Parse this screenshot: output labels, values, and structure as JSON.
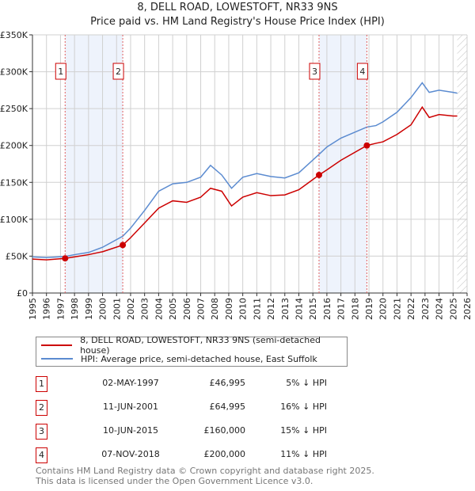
{
  "title_line1": "8, DELL ROAD, LOWESTOFT, NR33 9NS",
  "title_line2": "Price paid vs. HM Land Registry's House Price Index (HPI)",
  "chart_data": {
    "type": "line",
    "title": "8, DELL ROAD, LOWESTOFT, NR33 9NS — Price paid vs. HM Land Registry's House Price Index (HPI)",
    "xlim": [
      1995,
      2026
    ],
    "ylim": [
      0,
      350000
    ],
    "x_ticks": [
      "1995",
      "1996",
      "1997",
      "1998",
      "1999",
      "2000",
      "2001",
      "2002",
      "2003",
      "2004",
      "2005",
      "2006",
      "2007",
      "2008",
      "2009",
      "2010",
      "2011",
      "2012",
      "2013",
      "2014",
      "2015",
      "2016",
      "2017",
      "2018",
      "2019",
      "2020",
      "2021",
      "2022",
      "2023",
      "2024",
      "2025",
      "2026"
    ],
    "y_ticks": [
      {
        "v": 0,
        "label": "£0"
      },
      {
        "v": 50000,
        "label": "£50K"
      },
      {
        "v": 100000,
        "label": "£100K"
      },
      {
        "v": 150000,
        "label": "£150K"
      },
      {
        "v": 200000,
        "label": "£200K"
      },
      {
        "v": 250000,
        "label": "£250K"
      },
      {
        "v": 300000,
        "label": "£300K"
      },
      {
        "v": 350000,
        "label": "£350K"
      }
    ],
    "grid": true,
    "colors": {
      "property": "#cc0000",
      "hpi": "#5b8bd0",
      "shade": "#eef3fc",
      "marker_line": "#e06060"
    },
    "series": [
      {
        "name": "8, DELL ROAD, LOWESTOFT, NR33 9NS (semi-detached house)",
        "key": "property",
        "x": [
          1995,
          1996,
          1997.33,
          1998,
          1999,
          2000,
          2001.44,
          2002,
          2003,
          2004,
          2005,
          2006,
          2007,
          2007.7,
          2008.5,
          2009.2,
          2010,
          2011,
          2012,
          2013,
          2014,
          2015.44,
          2016,
          2017,
          2018.85,
          2019.5,
          2020,
          2021,
          2022,
          2022.8,
          2023.3,
          2024,
          2025,
          2025.3
        ],
        "y": [
          46000,
          45000,
          46995,
          49000,
          52000,
          56000,
          64995,
          75000,
          95000,
          115000,
          125000,
          123000,
          130000,
          142000,
          138000,
          118000,
          130000,
          136000,
          132000,
          133000,
          140000,
          160000,
          167000,
          180000,
          200000,
          203000,
          205000,
          215000,
          228000,
          252000,
          238000,
          242000,
          240000,
          240000
        ]
      },
      {
        "name": "HPI: Average price, semi-detached house, East Suffolk",
        "key": "hpi",
        "x": [
          1995,
          1996,
          1997.33,
          1998,
          1999,
          2000,
          2001.44,
          2002,
          2003,
          2004,
          2005,
          2006,
          2007,
          2007.7,
          2008.5,
          2009.2,
          2010,
          2011,
          2012,
          2013,
          2014,
          2015.44,
          2016,
          2017,
          2018.85,
          2019.5,
          2020,
          2021,
          2022,
          2022.8,
          2023.3,
          2024,
          2025,
          2025.3
        ],
        "y": [
          49000,
          48000,
          49500,
          52000,
          55000,
          62000,
          77000,
          88000,
          112000,
          138000,
          148000,
          150000,
          157000,
          173000,
          160000,
          142000,
          157000,
          162000,
          158000,
          156000,
          163000,
          188000,
          198000,
          210000,
          225000,
          227000,
          232000,
          245000,
          265000,
          285000,
          272000,
          275000,
          272000,
          271000
        ]
      }
    ],
    "sales": [
      {
        "n": "1",
        "x": 1997.33,
        "price": 46995
      },
      {
        "n": "2",
        "x": 2001.44,
        "price": 64995
      },
      {
        "n": "3",
        "x": 2015.44,
        "price": 160000
      },
      {
        "n": "4",
        "x": 2018.85,
        "price": 200000
      }
    ],
    "shaded_ranges": [
      [
        1997.33,
        2001.44
      ],
      [
        2015.44,
        2018.85
      ]
    ],
    "hatched_from": 2025.3
  },
  "legend": {
    "property": "8, DELL ROAD, LOWESTOFT, NR33 9NS (semi-detached house)",
    "hpi": "HPI: Average price, semi-detached house, East Suffolk"
  },
  "transactions": [
    {
      "n": "1",
      "date": "02-MAY-1997",
      "price": "£46,995",
      "hpi": "5% ↓ HPI"
    },
    {
      "n": "2",
      "date": "11-JUN-2001",
      "price": "£64,995",
      "hpi": "16% ↓ HPI"
    },
    {
      "n": "3",
      "date": "10-JUN-2015",
      "price": "£160,000",
      "hpi": "15% ↓ HPI"
    },
    {
      "n": "4",
      "date": "07-NOV-2018",
      "price": "£200,000",
      "hpi": "11% ↓ HPI"
    }
  ],
  "footer_line1": "Contains HM Land Registry data © Crown copyright and database right 2025.",
  "footer_line2": "This data is licensed under the Open Government Licence v3.0."
}
